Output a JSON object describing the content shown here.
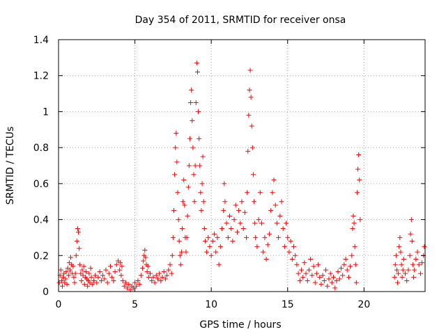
{
  "chart_data": {
    "type": "scatter",
    "title": "Day 354 of 2011, SRMTID for receiver onsa",
    "xlabel": "GPS time / hours",
    "ylabel": "SRMTID / TECUs",
    "xlim": [
      0,
      24
    ],
    "ylim": [
      0,
      1.4
    ],
    "xticks": [
      0,
      5,
      10,
      15,
      20
    ],
    "xtick_labels": [
      "0",
      "5",
      "10",
      "15",
      "20"
    ],
    "yticks": [
      0,
      0.2,
      0.4,
      0.6,
      0.8,
      1,
      1.2,
      1.4
    ],
    "ytick_labels": [
      "0",
      "0.2",
      "0.4",
      "0.6",
      "0.8",
      "1",
      "1.2",
      "1.4"
    ],
    "grid": true,
    "marker": "+",
    "color": "#ff0000",
    "series": [
      {
        "name": "SRMTID",
        "points": [
          [
            0.05,
            0.05
          ],
          [
            0.1,
            0.09
          ],
          [
            0.15,
            0.12
          ],
          [
            0.2,
            0.06
          ],
          [
            0.25,
            0.03
          ],
          [
            0.3,
            0.08
          ],
          [
            0.35,
            0.1
          ],
          [
            0.4,
            0.05
          ],
          [
            0.45,
            0.07
          ],
          [
            0.5,
            0.11
          ],
          [
            0.55,
            0.04
          ],
          [
            0.6,
            0.13
          ],
          [
            0.65,
            0.09
          ],
          [
            0.7,
            0.16
          ],
          [
            0.75,
            0.12
          ],
          [
            0.8,
            0.19
          ],
          [
            0.85,
            0.15
          ],
          [
            0.9,
            0.1
          ],
          [
            0.95,
            0.14
          ],
          [
            1.0,
            0.08
          ],
          [
            1.05,
            0.05
          ],
          [
            1.1,
            0.1
          ],
          [
            1.15,
            0.2
          ],
          [
            1.2,
            0.28
          ],
          [
            1.25,
            0.35
          ],
          [
            1.3,
            0.33
          ],
          [
            1.35,
            0.24
          ],
          [
            1.4,
            0.15
          ],
          [
            1.45,
            0.1
          ],
          [
            1.5,
            0.06
          ],
          [
            1.55,
            0.12
          ],
          [
            1.6,
            0.09
          ],
          [
            1.65,
            0.14
          ],
          [
            1.7,
            0.04
          ],
          [
            1.75,
            0.08
          ],
          [
            1.8,
            0.11
          ],
          [
            1.85,
            0.07
          ],
          [
            1.9,
            0.03
          ],
          [
            1.95,
            0.06
          ],
          [
            2.0,
            0.1
          ],
          [
            2.05,
            0.05
          ],
          [
            2.1,
            0.13
          ],
          [
            2.15,
            0.08
          ],
          [
            2.2,
            0.04
          ],
          [
            2.3,
            0.06
          ],
          [
            2.4,
            0.09
          ],
          [
            2.5,
            0.05
          ],
          [
            2.6,
            0.08
          ],
          [
            2.7,
            0.11
          ],
          [
            2.8,
            0.06
          ],
          [
            2.9,
            0.09
          ],
          [
            3.0,
            0.07
          ],
          [
            3.1,
            0.12
          ],
          [
            3.2,
            0.05
          ],
          [
            3.3,
            0.1
          ],
          [
            3.4,
            0.14
          ],
          [
            3.5,
            0.08
          ],
          [
            3.6,
            0.06
          ],
          [
            3.7,
            0.11
          ],
          [
            3.8,
            0.15
          ],
          [
            3.9,
            0.17
          ],
          [
            4.0,
            0.12
          ],
          [
            4.05,
            0.16
          ],
          [
            4.1,
            0.09
          ],
          [
            4.15,
            0.14
          ],
          [
            4.2,
            0.06
          ],
          [
            4.3,
            0.03
          ],
          [
            4.4,
            0.05
          ],
          [
            4.5,
            0.02
          ],
          [
            4.6,
            0.04
          ],
          [
            4.7,
            0.01
          ],
          [
            4.8,
            0.03
          ],
          [
            4.9,
            0.02
          ],
          [
            5.0,
            0.05
          ],
          [
            5.1,
            0.03
          ],
          [
            5.2,
            0.06
          ],
          [
            5.3,
            0.04
          ],
          [
            5.4,
            0.09
          ],
          [
            5.5,
            0.13
          ],
          [
            5.55,
            0.17
          ],
          [
            5.6,
            0.2
          ],
          [
            5.65,
            0.23
          ],
          [
            5.7,
            0.19
          ],
          [
            5.75,
            0.15
          ],
          [
            5.8,
            0.11
          ],
          [
            5.85,
            0.14
          ],
          [
            5.9,
            0.08
          ],
          [
            6.0,
            0.1
          ],
          [
            6.1,
            0.06
          ],
          [
            6.2,
            0.08
          ],
          [
            6.3,
            0.05
          ],
          [
            6.4,
            0.09
          ],
          [
            6.5,
            0.07
          ],
          [
            6.6,
            0.1
          ],
          [
            6.7,
            0.06
          ],
          [
            6.8,
            0.08
          ],
          [
            6.9,
            0.11
          ],
          [
            7.0,
            0.07
          ],
          [
            7.1,
            0.09
          ],
          [
            7.2,
            0.12
          ],
          [
            7.3,
            0.15
          ],
          [
            7.4,
            0.1
          ],
          [
            7.45,
            0.2
          ],
          [
            7.5,
            0.3
          ],
          [
            7.55,
            0.45
          ],
          [
            7.6,
            0.65
          ],
          [
            7.65,
            0.8
          ],
          [
            7.7,
            0.88
          ],
          [
            7.75,
            0.72
          ],
          [
            7.8,
            0.55
          ],
          [
            7.85,
            0.4
          ],
          [
            7.9,
            0.28
          ],
          [
            7.95,
            0.2
          ],
          [
            8.0,
            0.15
          ],
          [
            8.05,
            0.22
          ],
          [
            8.1,
            0.35
          ],
          [
            8.15,
            0.5
          ],
          [
            8.2,
            0.62
          ],
          [
            8.25,
            0.48
          ],
          [
            8.3,
            0.3
          ],
          [
            8.35,
            0.22
          ],
          [
            8.4,
            0.3
          ],
          [
            8.45,
            0.42
          ],
          [
            8.5,
            0.58
          ],
          [
            8.55,
            0.7
          ],
          [
            8.6,
            0.85
          ],
          [
            8.65,
            1.05
          ],
          [
            8.7,
            1.12
          ],
          [
            8.75,
            0.95
          ],
          [
            8.8,
            0.8
          ],
          [
            8.85,
            0.65
          ],
          [
            8.9,
            0.5
          ],
          [
            8.95,
            0.7
          ],
          [
            9.0,
            1.05
          ],
          [
            9.05,
            1.27
          ],
          [
            9.1,
            1.22
          ],
          [
            9.15,
            1.0
          ],
          [
            9.2,
            0.85
          ],
          [
            9.25,
            0.7
          ],
          [
            9.3,
            0.55
          ],
          [
            9.35,
            0.45
          ],
          [
            9.4,
            0.6
          ],
          [
            9.45,
            0.75
          ],
          [
            9.5,
            0.5
          ],
          [
            9.55,
            0.35
          ],
          [
            9.6,
            0.28
          ],
          [
            9.7,
            0.22
          ],
          [
            9.8,
            0.3
          ],
          [
            9.9,
            0.25
          ],
          [
            10.0,
            0.2
          ],
          [
            10.1,
            0.28
          ],
          [
            10.2,
            0.32
          ],
          [
            10.3,
            0.22
          ],
          [
            10.4,
            0.3
          ],
          [
            10.5,
            0.15
          ],
          [
            10.6,
            0.25
          ],
          [
            10.7,
            0.35
          ],
          [
            10.8,
            0.45
          ],
          [
            10.85,
            0.6
          ],
          [
            10.9,
            0.5
          ],
          [
            11.0,
            0.38
          ],
          [
            11.1,
            0.3
          ],
          [
            11.2,
            0.42
          ],
          [
            11.3,
            0.35
          ],
          [
            11.4,
            0.28
          ],
          [
            11.5,
            0.4
          ],
          [
            11.6,
            0.48
          ],
          [
            11.7,
            0.33
          ],
          [
            11.8,
            0.45
          ],
          [
            11.9,
            0.38
          ],
          [
            12.0,
            0.5
          ],
          [
            12.1,
            0.35
          ],
          [
            12.2,
            0.44
          ],
          [
            12.3,
            0.3
          ],
          [
            12.35,
            0.55
          ],
          [
            12.4,
            0.78
          ],
          [
            12.45,
            0.98
          ],
          [
            12.5,
            1.12
          ],
          [
            12.55,
            1.23
          ],
          [
            12.6,
            1.08
          ],
          [
            12.65,
            0.92
          ],
          [
            12.7,
            0.8
          ],
          [
            12.75,
            0.65
          ],
          [
            12.8,
            0.5
          ],
          [
            12.85,
            0.38
          ],
          [
            12.9,
            0.3
          ],
          [
            13.0,
            0.25
          ],
          [
            13.1,
            0.4
          ],
          [
            13.2,
            0.55
          ],
          [
            13.3,
            0.38
          ],
          [
            13.4,
            0.22
          ],
          [
            13.5,
            0.3
          ],
          [
            13.6,
            0.18
          ],
          [
            13.7,
            0.26
          ],
          [
            13.8,
            0.32
          ],
          [
            13.9,
            0.45
          ],
          [
            14.0,
            0.55
          ],
          [
            14.1,
            0.62
          ],
          [
            14.2,
            0.48
          ],
          [
            14.3,
            0.38
          ],
          [
            14.4,
            0.3
          ],
          [
            14.5,
            0.42
          ],
          [
            14.6,
            0.5
          ],
          [
            14.7,
            0.35
          ],
          [
            14.8,
            0.25
          ],
          [
            14.9,
            0.38
          ],
          [
            15.0,
            0.3
          ],
          [
            15.1,
            0.22
          ],
          [
            15.2,
            0.28
          ],
          [
            15.3,
            0.18
          ],
          [
            15.4,
            0.25
          ],
          [
            15.5,
            0.2
          ],
          [
            15.6,
            0.15
          ],
          [
            15.7,
            0.1
          ],
          [
            15.8,
            0.06
          ],
          [
            15.9,
            0.12
          ],
          [
            16.0,
            0.08
          ],
          [
            16.1,
            0.16
          ],
          [
            16.2,
            0.1
          ],
          [
            16.3,
            0.06
          ],
          [
            16.4,
            0.12
          ],
          [
            16.5,
            0.18
          ],
          [
            16.6,
            0.09
          ],
          [
            16.7,
            0.14
          ],
          [
            16.8,
            0.05
          ],
          [
            16.9,
            0.1
          ],
          [
            17.0,
            0.15
          ],
          [
            17.1,
            0.08
          ],
          [
            17.2,
            0.04
          ],
          [
            17.3,
            0.09
          ],
          [
            17.4,
            0.06
          ],
          [
            17.5,
            0.12
          ],
          [
            17.6,
            0.03
          ],
          [
            17.7,
            0.07
          ],
          [
            17.8,
            0.1
          ],
          [
            17.9,
            0.05
          ],
          [
            18.0,
            0.08
          ],
          [
            18.1,
            0.02
          ],
          [
            18.2,
            0.06
          ],
          [
            18.3,
            0.11
          ],
          [
            18.4,
            0.07
          ],
          [
            18.5,
            0.13
          ],
          [
            18.6,
            0.09
          ],
          [
            18.7,
            0.15
          ],
          [
            18.8,
            0.18
          ],
          [
            18.9,
            0.12
          ],
          [
            19.0,
            0.08
          ],
          [
            19.1,
            0.14
          ],
          [
            19.2,
            0.2
          ],
          [
            19.25,
            0.35
          ],
          [
            19.3,
            0.42
          ],
          [
            19.35,
            0.38
          ],
          [
            19.4,
            0.25
          ],
          [
            19.45,
            0.15
          ],
          [
            19.5,
            0.05
          ],
          [
            19.55,
            0.55
          ],
          [
            19.6,
            0.68
          ],
          [
            19.65,
            0.76
          ],
          [
            19.7,
            0.62
          ],
          [
            19.75,
            0.4
          ],
          [
            22.0,
            0.08
          ],
          [
            22.05,
            0.15
          ],
          [
            22.1,
            0.2
          ],
          [
            22.15,
            0.12
          ],
          [
            22.2,
            0.05
          ],
          [
            22.25,
            0.1
          ],
          [
            22.3,
            0.25
          ],
          [
            22.35,
            0.3
          ],
          [
            22.4,
            0.22
          ],
          [
            22.45,
            0.15
          ],
          [
            22.5,
            0.08
          ],
          [
            22.55,
            0.12
          ],
          [
            22.6,
            0.18
          ],
          [
            22.7,
            0.1
          ],
          [
            22.8,
            0.06
          ],
          [
            22.9,
            0.12
          ],
          [
            23.0,
            0.2
          ],
          [
            23.05,
            0.32
          ],
          [
            23.1,
            0.4
          ],
          [
            23.15,
            0.28
          ],
          [
            23.2,
            0.15
          ],
          [
            23.25,
            0.08
          ],
          [
            23.3,
            0.12
          ],
          [
            23.4,
            0.18
          ],
          [
            23.5,
            0.22
          ],
          [
            23.6,
            0.15
          ],
          [
            23.7,
            0.1
          ],
          [
            23.8,
            0.16
          ],
          [
            23.9,
            0.2
          ],
          [
            23.95,
            0.25
          ]
        ]
      }
    ]
  }
}
